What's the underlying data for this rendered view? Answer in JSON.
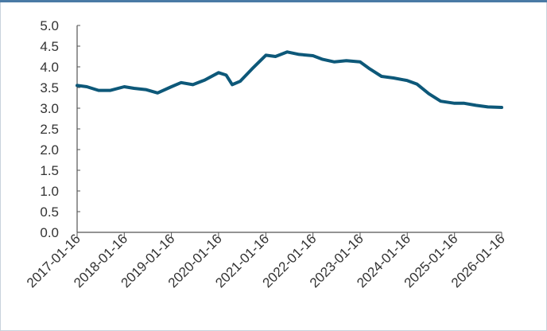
{
  "chart_data": {
    "type": "line",
    "title": "",
    "xlabel": "",
    "ylabel": "",
    "ylim": [
      0,
      5
    ],
    "y_ticks": [
      "0.0",
      "0.5",
      "1.0",
      "1.5",
      "2.0",
      "2.5",
      "3.0",
      "3.5",
      "4.0",
      "4.5",
      "5.0"
    ],
    "x_ticks": [
      "2017-01-16",
      "2018-01-16",
      "2019-01-16",
      "2020-01-16",
      "2021-01-16",
      "2022-01-16",
      "2023-01-16",
      "2024-01-16",
      "2025-01-16",
      "2026-01-16"
    ],
    "xlim": [
      "2017-01-16",
      "2026-01-16"
    ],
    "grid": false,
    "line_color": "#0d5879",
    "series": [
      {
        "x": [
          "2017-01-16",
          "2017-04-01",
          "2017-07-01",
          "2017-10-01",
          "2018-01-16",
          "2018-04-01",
          "2018-07-01",
          "2018-10-01",
          "2019-01-16",
          "2019-04-01",
          "2019-07-01",
          "2019-10-01",
          "2020-01-16",
          "2020-03-15",
          "2020-05-01",
          "2020-07-01",
          "2020-10-01",
          "2021-01-16",
          "2021-04-01",
          "2021-07-01",
          "2021-10-01",
          "2022-01-16",
          "2022-04-01",
          "2022-07-01",
          "2022-10-01",
          "2023-01-16",
          "2023-04-01",
          "2023-07-01",
          "2023-10-01",
          "2024-01-16",
          "2024-04-01",
          "2024-07-01",
          "2024-10-01",
          "2025-01-16",
          "2025-04-01",
          "2025-07-01",
          "2025-10-01",
          "2026-01-16"
        ],
        "y": [
          3.55,
          3.52,
          3.43,
          3.43,
          3.52,
          3.48,
          3.45,
          3.37,
          3.52,
          3.62,
          3.57,
          3.68,
          3.86,
          3.8,
          3.57,
          3.65,
          3.95,
          4.28,
          4.25,
          4.36,
          4.3,
          4.27,
          4.18,
          4.12,
          4.15,
          4.12,
          3.95,
          3.77,
          3.73,
          3.67,
          3.58,
          3.35,
          3.17,
          3.12,
          3.12,
          3.07,
          3.03,
          3.02
        ]
      }
    ]
  }
}
